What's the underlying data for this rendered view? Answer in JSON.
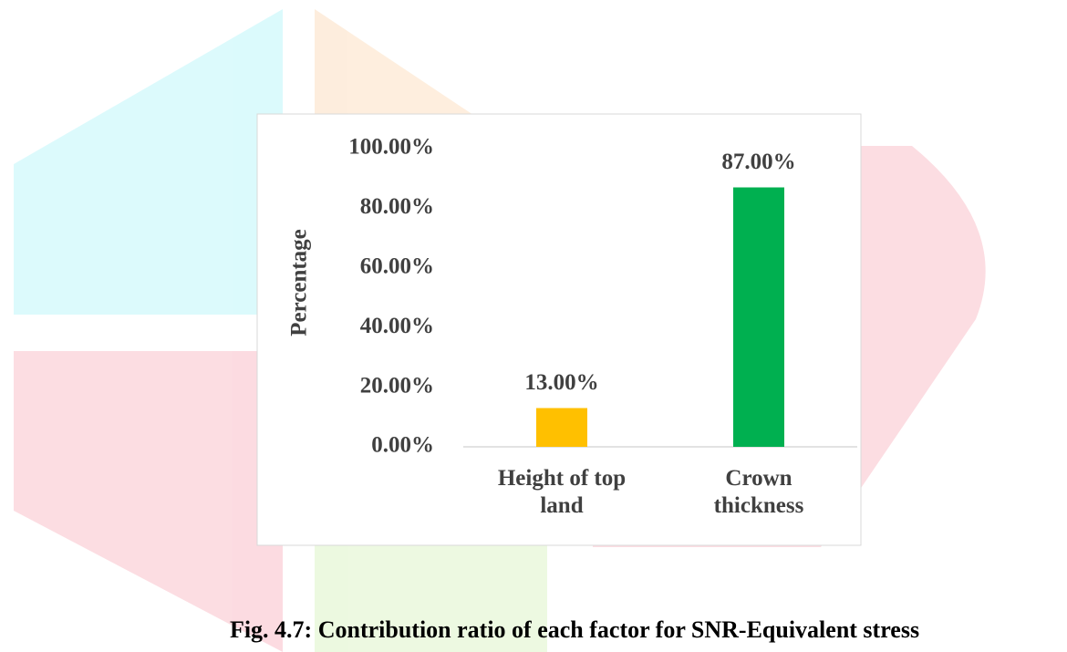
{
  "chart_data": {
    "type": "bar",
    "caption": "Fig. 4.7: Contribution ratio of each factor for SNR-Equivalent stress",
    "y_label": "Percentage",
    "categories": [
      "Height of top land",
      "Crown thickness"
    ],
    "values": [
      13,
      87
    ],
    "value_labels": [
      "13.00%",
      "87.00%"
    ],
    "colors": [
      "#FFC000",
      "#00B050"
    ],
    "ylim": [
      0,
      100
    ],
    "yticks": [
      {
        "value": 0,
        "label": "0.00%"
      },
      {
        "value": 20,
        "label": "20.00%"
      },
      {
        "value": 40,
        "label": "40.00%"
      },
      {
        "value": 60,
        "label": "60.00%"
      },
      {
        "value": 80,
        "label": "80.00%"
      },
      {
        "value": 100,
        "label": "100.00%"
      }
    ],
    "grid": false
  }
}
